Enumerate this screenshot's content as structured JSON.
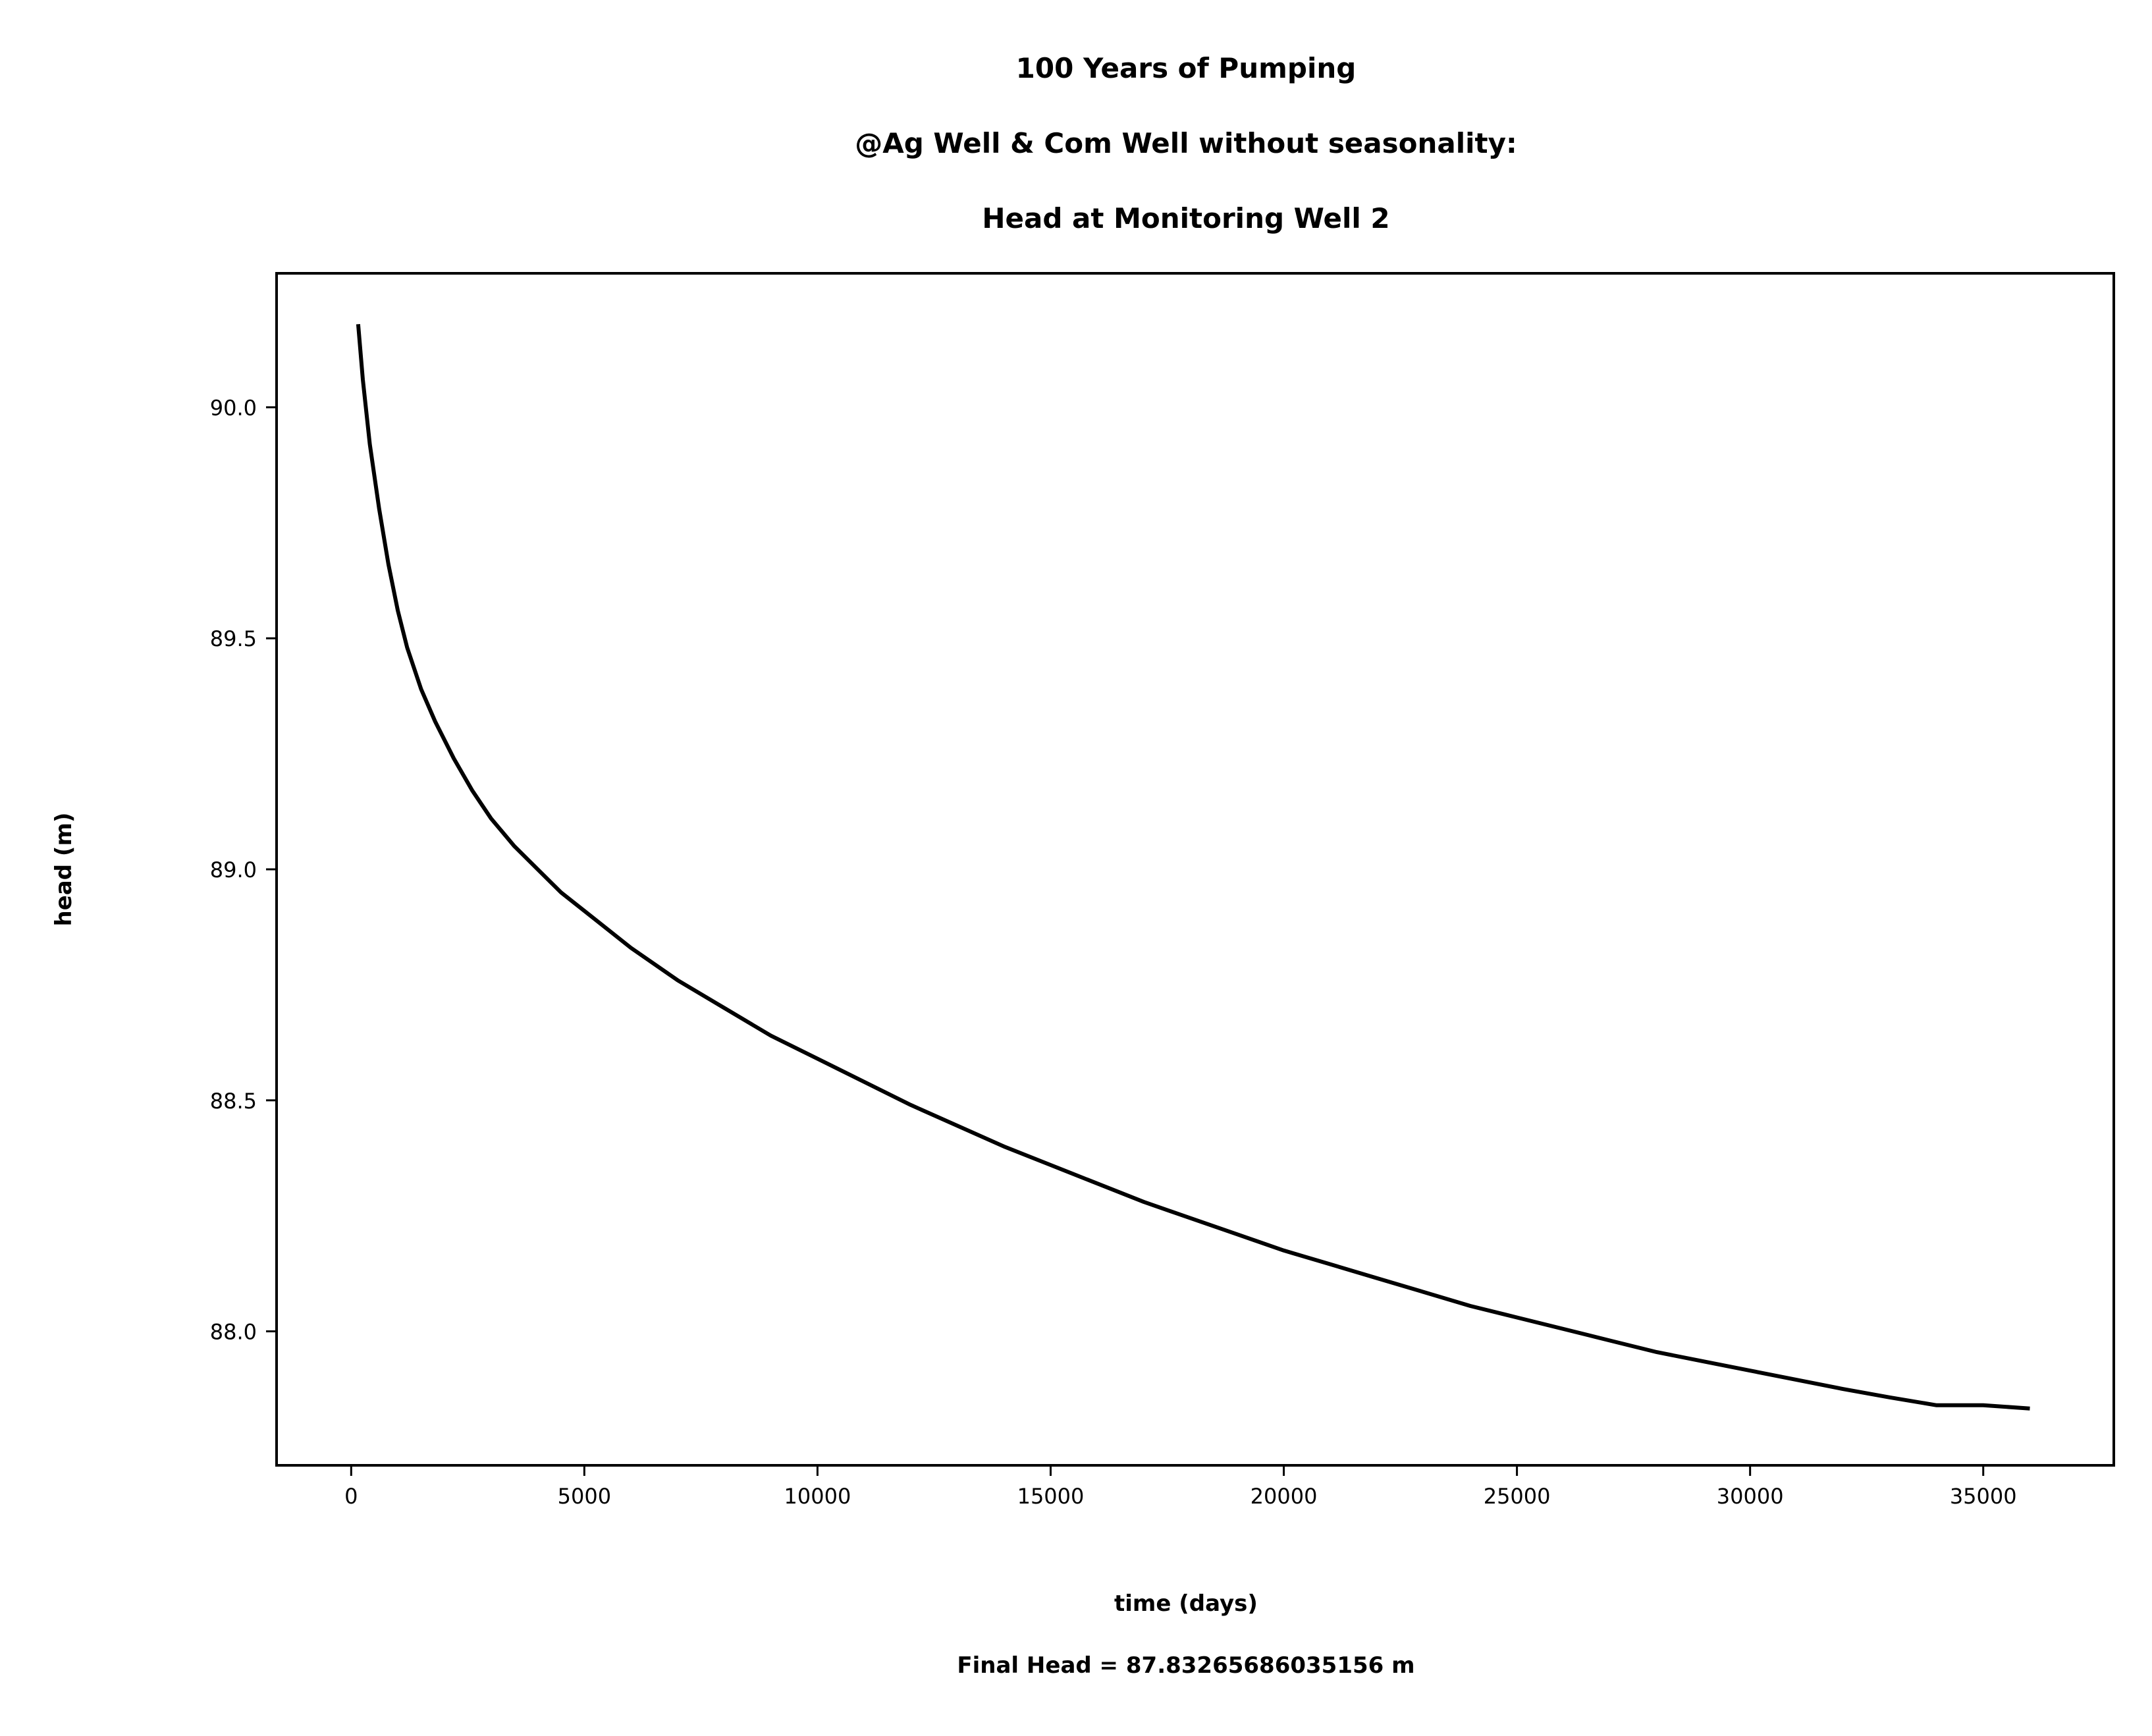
{
  "chart_data": {
    "type": "line",
    "title_lines": [
      "100 Years of Pumping",
      "@Ag Well & Com Well without seasonality:",
      "Head at Monitoring Well 2"
    ],
    "xlabel": "time (days)",
    "ylabel": "head (m)",
    "note": "Final Head = 87.83265686035156 m",
    "xlim": [
      -1600,
      37800
    ],
    "ylim": [
      87.71,
      90.29
    ],
    "x_ticks": [
      0,
      5000,
      10000,
      15000,
      20000,
      25000,
      30000,
      35000
    ],
    "x_tick_labels": [
      "0",
      "5000",
      "10000",
      "15000",
      "20000",
      "25000",
      "30000",
      "35000"
    ],
    "y_ticks": [
      88.0,
      88.5,
      89.0,
      89.5,
      90.0
    ],
    "y_tick_labels": [
      "88.0",
      "88.5",
      "89.0",
      "89.5",
      "90.0"
    ],
    "grid": false,
    "line_color": "#000000",
    "series": [
      {
        "x": [
          150,
          250,
          400,
          600,
          800,
          1000,
          1200,
          1500,
          1800,
          2200,
          2600,
          3000,
          3500,
          4000,
          4500,
          5000,
          6000,
          7000,
          8000,
          9000,
          10000,
          11000,
          12000,
          13000,
          14000,
          15000,
          16000,
          17000,
          18000,
          19000,
          20000,
          21000,
          22000,
          23000,
          24000,
          25000,
          26000,
          27000,
          28000,
          29000,
          30000,
          31000,
          32000,
          33000,
          34000,
          35000,
          36000
        ],
        "y": [
          90.18,
          90.06,
          89.92,
          89.78,
          89.66,
          89.56,
          89.48,
          89.39,
          89.32,
          89.24,
          89.17,
          89.11,
          89.05,
          89.0,
          88.95,
          88.91,
          88.83,
          88.76,
          88.7,
          88.64,
          88.59,
          88.54,
          88.49,
          88.445,
          88.4,
          88.36,
          88.32,
          88.28,
          88.245,
          88.21,
          88.175,
          88.145,
          88.115,
          88.085,
          88.055,
          88.03,
          88.005,
          87.98,
          87.955,
          87.935,
          87.915,
          87.895,
          87.875,
          87.857,
          87.84,
          87.84,
          87.833
        ]
      }
    ]
  }
}
